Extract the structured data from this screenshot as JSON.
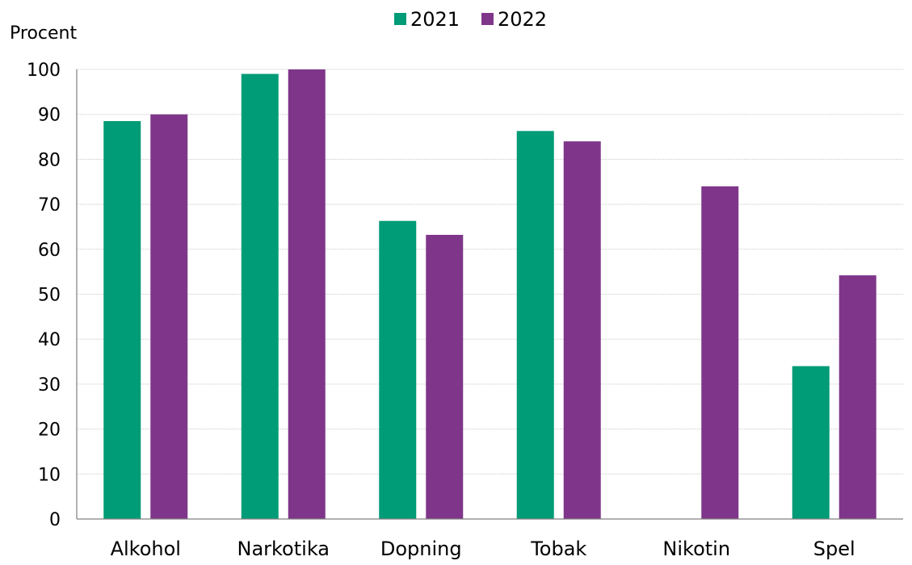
{
  "chart_data": {
    "type": "bar",
    "ylabel": "Procent",
    "xlabel": "",
    "ylim": [
      0,
      100
    ],
    "yticks": [
      0,
      10,
      20,
      30,
      40,
      50,
      60,
      70,
      80,
      90,
      100
    ],
    "grid": true,
    "legend_position": "top-center",
    "categories": [
      "Alkohol",
      "Narkotika",
      "Dopning",
      "Tobak",
      "Nikotin",
      "Spel"
    ],
    "series": [
      {
        "name": "2021",
        "color": "#009B77",
        "values": [
          88.5,
          99,
          66.3,
          86.3,
          null,
          34
        ]
      },
      {
        "name": "2022",
        "color": "#7F368A",
        "values": [
          90,
          100,
          63.2,
          84,
          74,
          54.2
        ]
      }
    ]
  }
}
